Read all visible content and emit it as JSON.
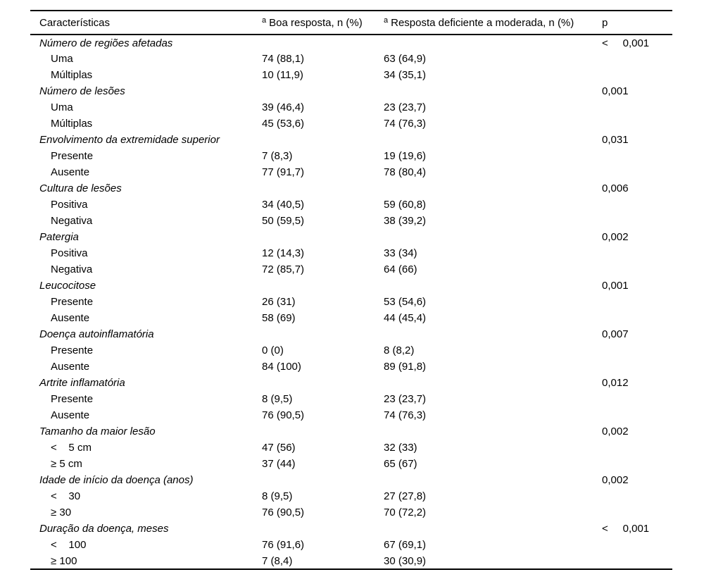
{
  "accent_colors": {
    "text": "#000000",
    "background": "#ffffff",
    "rule": "#000000"
  },
  "table": {
    "headers": [
      {
        "sup": "",
        "text": "Características"
      },
      {
        "sup": "a",
        "text": "Boa resposta, n (%)"
      },
      {
        "sup": "a",
        "text": "Resposta deficiente a moderada, n (%)"
      },
      {
        "sup": "",
        "text": "p"
      }
    ],
    "rows": [
      {
        "type": "group",
        "label": "Número de regiões afetadas",
        "good": "",
        "poor": "",
        "p": "<     0,001"
      },
      {
        "type": "sub",
        "label": "Uma",
        "good": "74 (88,1)",
        "poor": "63 (64,9)",
        "p": ""
      },
      {
        "type": "sub",
        "label": "Múltiplas",
        "good": "10 (11,9)",
        "poor": "34 (35,1)",
        "p": ""
      },
      {
        "type": "group",
        "label": "Número de lesões",
        "good": "",
        "poor": "",
        "p": "0,001"
      },
      {
        "type": "sub",
        "label": "Uma",
        "good": "39 (46,4)",
        "poor": "23 (23,7)",
        "p": ""
      },
      {
        "type": "sub",
        "label": "Múltiplas",
        "good": "45 (53,6)",
        "poor": "74 (76,3)",
        "p": ""
      },
      {
        "type": "group",
        "label": "Envolvimento da extremidade superior",
        "good": "",
        "poor": "",
        "p": "0,031"
      },
      {
        "type": "sub",
        "label": "Presente",
        "good": "7 (8,3)",
        "poor": "19 (19,6)",
        "p": ""
      },
      {
        "type": "sub",
        "label": "Ausente",
        "good": "77 (91,7)",
        "poor": "78 (80,4)",
        "p": ""
      },
      {
        "type": "group",
        "label": "Cultura de lesões",
        "good": "",
        "poor": "",
        "p": "0,006"
      },
      {
        "type": "sub",
        "label": "Positiva",
        "good": "34 (40,5)",
        "poor": "59 (60,8)",
        "p": ""
      },
      {
        "type": "sub",
        "label": "Negativa",
        "good": "50 (59,5)",
        "poor": "38 (39,2)",
        "p": ""
      },
      {
        "type": "group",
        "label": "Patergia",
        "good": "",
        "poor": "",
        "p": "0,002"
      },
      {
        "type": "sub",
        "label": "Positiva",
        "good": "12 (14,3)",
        "poor": "33 (34)",
        "p": ""
      },
      {
        "type": "sub",
        "label": "Negativa",
        "good": "72 (85,7)",
        "poor": "64 (66)",
        "p": ""
      },
      {
        "type": "group",
        "label": "Leucocitose",
        "good": "",
        "poor": "",
        "p": "0,001"
      },
      {
        "type": "sub",
        "label": "Presente",
        "good": "26 (31)",
        "poor": "53 (54,6)",
        "p": ""
      },
      {
        "type": "sub",
        "label": "Ausente",
        "good": "58 (69)",
        "poor": "44 (45,4)",
        "p": ""
      },
      {
        "type": "group",
        "label": "Doença autoinflamatória",
        "good": "",
        "poor": "",
        "p": "0,007"
      },
      {
        "type": "sub",
        "label": "Presente",
        "good": "0 (0)",
        "poor": "8 (8,2)",
        "p": ""
      },
      {
        "type": "sub",
        "label": "Ausente",
        "good": "84 (100)",
        "poor": "89 (91,8)",
        "p": ""
      },
      {
        "type": "group",
        "label": "Artrite inflamatória",
        "good": "",
        "poor": "",
        "p": "0,012"
      },
      {
        "type": "sub",
        "label": "Presente",
        "good": "8 (9,5)",
        "poor": "23 (23,7)",
        "p": ""
      },
      {
        "type": "sub",
        "label": "Ausente",
        "good": "76 (90,5)",
        "poor": "74 (76,3)",
        "p": ""
      },
      {
        "type": "group",
        "label": "Tamanho da maior lesão",
        "good": "",
        "poor": "",
        "p": "0,002"
      },
      {
        "type": "sub",
        "label": "<    5 cm",
        "good": "47 (56)",
        "poor": "32 (33)",
        "p": ""
      },
      {
        "type": "sub",
        "label": "≥ 5 cm",
        "good": "37 (44)",
        "poor": "65 (67)",
        "p": ""
      },
      {
        "type": "group",
        "label": "Idade de início da doença (anos)",
        "good": "",
        "poor": "",
        "p": "0,002"
      },
      {
        "type": "sub",
        "label": "<    30",
        "good": "8 (9,5)",
        "poor": "27 (27,8)",
        "p": ""
      },
      {
        "type": "sub",
        "label": "≥ 30",
        "good": "76 (90,5)",
        "poor": "70 (72,2)",
        "p": ""
      },
      {
        "type": "group",
        "label": "Duração da doença, meses",
        "good": "",
        "poor": "",
        "p": "<     0,001"
      },
      {
        "type": "sub",
        "label": "<    100",
        "good": "76 (91,6)",
        "poor": "67 (69,1)",
        "p": ""
      },
      {
        "type": "sub",
        "label": "≥ 100",
        "good": "7 (8,4)",
        "poor": "30 (30,9)",
        "p": ""
      }
    ]
  }
}
